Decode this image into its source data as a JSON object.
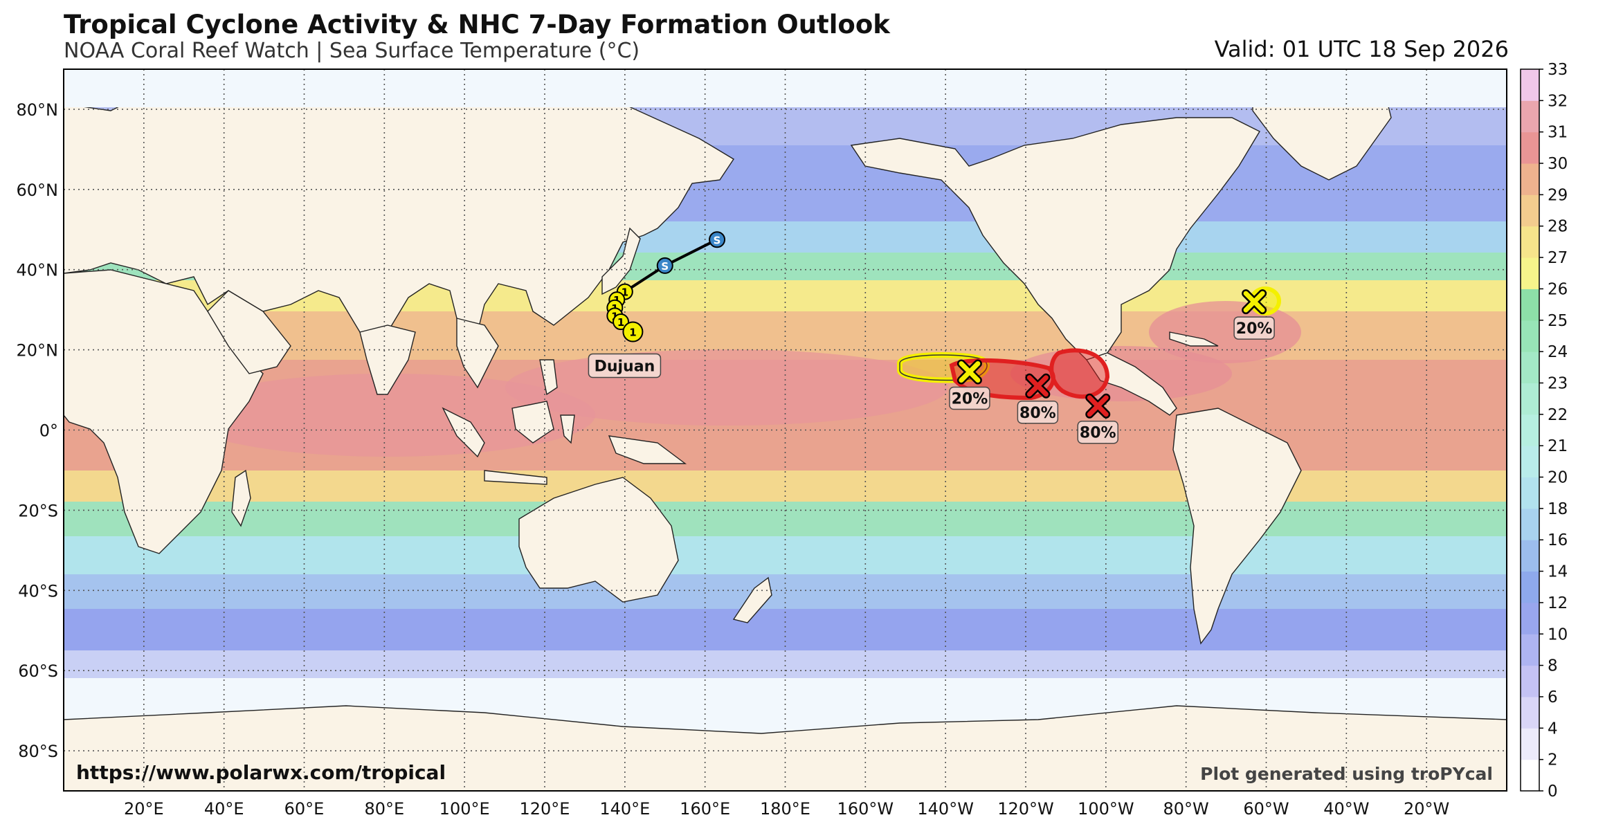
{
  "header": {
    "title": "Tropical Cyclone Activity & NHC 7-Day Formation Outlook",
    "subtitle": "NOAA Coral Reef Watch | Sea Surface Temperature (°C)",
    "valid": "Valid: 01 UTC 18 Sep 2026"
  },
  "map": {
    "projection": "PlateCarree",
    "lon_range": [
      0,
      360
    ],
    "lat_range": [
      -90,
      90
    ],
    "lon_ticks": [
      "20°E",
      "40°E",
      "60°E",
      "80°E",
      "100°E",
      "120°E",
      "140°E",
      "160°E",
      "180°E",
      "160°W",
      "140°W",
      "120°W",
      "100°W",
      "80°W",
      "60°W",
      "40°W",
      "20°W"
    ],
    "lon_tick_values": [
      20,
      40,
      60,
      80,
      100,
      120,
      140,
      160,
      180,
      200,
      220,
      240,
      260,
      280,
      300,
      320,
      340
    ],
    "lat_ticks": [
      "80°N",
      "60°N",
      "40°N",
      "20°N",
      "0°",
      "20°S",
      "40°S",
      "60°S",
      "80°S"
    ],
    "lat_tick_values": [
      80,
      60,
      40,
      20,
      0,
      -20,
      -40,
      -60,
      -80
    ],
    "gridlines": true,
    "land_color": "#faf3e6",
    "ocean_ice_color": "#f2f8fd"
  },
  "colorbar": {
    "ticks": [
      "0",
      "2",
      "4",
      "6",
      "8",
      "10",
      "12",
      "14",
      "16",
      "18",
      "20",
      "21",
      "22",
      "23",
      "24",
      "25",
      "26",
      "27",
      "28",
      "29",
      "30",
      "31",
      "32",
      "33"
    ],
    "colors": [
      "#ffffff",
      "#ecebfb",
      "#d9d6f7",
      "#c4c2f4",
      "#aeb4f2",
      "#99a6ee",
      "#8ea9ec",
      "#9cbded",
      "#a8d2ef",
      "#b2e2ee",
      "#b9ecea",
      "#b6efe0",
      "#aeecd4",
      "#a3e8c6",
      "#98e4b7",
      "#8ddfa8",
      "#f6f48b",
      "#f6e48b",
      "#f3cc8e",
      "#eeb28e",
      "#e99595",
      "#eaa6ae",
      "#f0c7e9"
    ]
  },
  "storms": [
    {
      "name": "Dujuan",
      "track": [
        {
          "lon": 163,
          "lat": 47.5,
          "category": "S"
        },
        {
          "lon": 150,
          "lat": 41,
          "category": "S"
        },
        {
          "lon": 140,
          "lat": 34.5,
          "category": "1"
        },
        {
          "lon": 138,
          "lat": 32.5,
          "category": "1"
        },
        {
          "lon": 137.5,
          "lat": 30.5,
          "category": "1"
        },
        {
          "lon": 137.5,
          "lat": 28.5,
          "category": "1"
        },
        {
          "lon": 139,
          "lat": 27,
          "category": "1"
        },
        {
          "lon": 142,
          "lat": 24.5,
          "category": "1"
        }
      ]
    }
  ],
  "outlook_areas": [
    {
      "label": "20%",
      "color": "#f4f000",
      "center": {
        "lon": 226,
        "lat": 14.5
      },
      "risk": "low"
    },
    {
      "label": "80%",
      "color": "#e02020",
      "center": {
        "lon": 243,
        "lat": 11
      },
      "risk": "high"
    },
    {
      "label": "80%",
      "color": "#e02020",
      "center": {
        "lon": 258,
        "lat": 6
      },
      "risk": "high"
    },
    {
      "label": "20%",
      "color": "#f4f000",
      "center": {
        "lon": 297,
        "lat": 32
      },
      "risk": "low"
    }
  ],
  "footer": {
    "url": "https://www.polarwx.com/tropical",
    "credit": "Plot generated using troPYcal"
  }
}
